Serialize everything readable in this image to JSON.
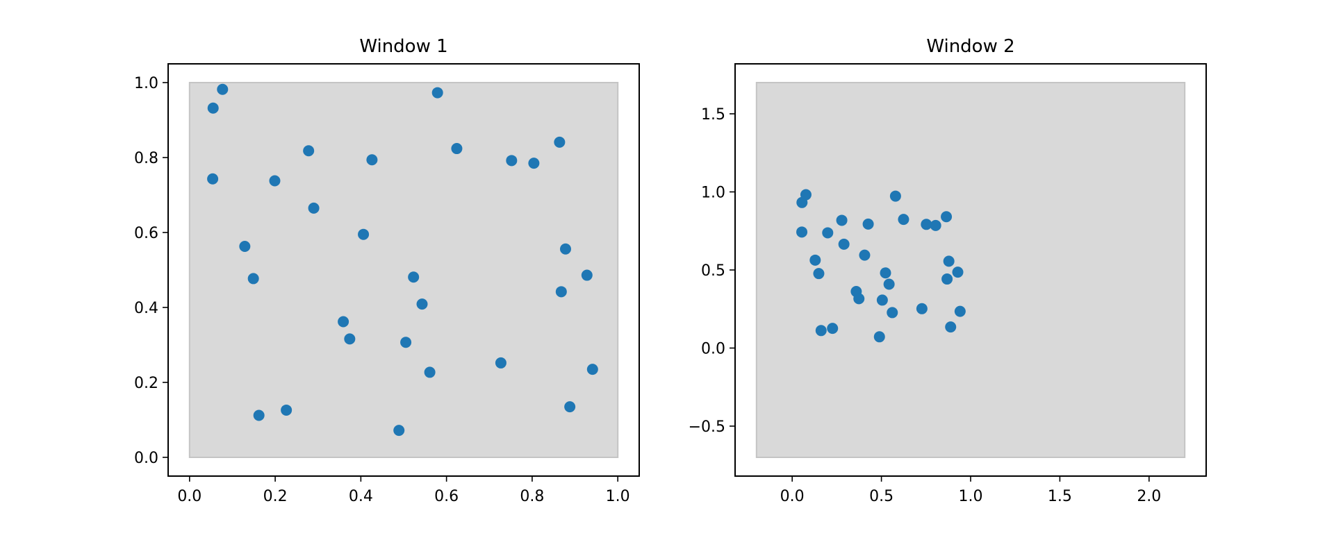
{
  "chart_data": [
    {
      "type": "scatter",
      "title": "Window 1",
      "xlim": [
        -0.05,
        1.05
      ],
      "ylim": [
        -0.05,
        1.05
      ],
      "xticks": [
        0.0,
        0.2,
        0.4,
        0.6,
        0.8,
        1.0
      ],
      "xtick_labels": [
        "0.0",
        "0.2",
        "0.4",
        "0.6",
        "0.8",
        "1.0"
      ],
      "yticks": [
        0.0,
        0.2,
        0.4,
        0.6,
        0.8,
        1.0
      ],
      "ytick_labels": [
        "0.0",
        "0.2",
        "0.4",
        "0.6",
        "0.8",
        "1.0"
      ],
      "grid": false,
      "background_rect": {
        "x": [
          0,
          1
        ],
        "y": [
          0,
          1
        ],
        "color": "#d9d9d9",
        "edge": "#c4c4c4"
      },
      "marker_color": "#1f77b4",
      "points": {
        "x": [
          0.055,
          0.077,
          0.054,
          0.199,
          0.278,
          0.29,
          0.426,
          0.406,
          0.579,
          0.624,
          0.752,
          0.804,
          0.864,
          0.129,
          0.149,
          0.878,
          0.523,
          0.543,
          0.868,
          0.928,
          0.359,
          0.374,
          0.505,
          0.561,
          0.727,
          0.941,
          0.162,
          0.226,
          0.489,
          0.888
        ],
        "y": [
          0.932,
          0.982,
          0.743,
          0.738,
          0.818,
          0.665,
          0.794,
          0.595,
          0.973,
          0.824,
          0.792,
          0.785,
          0.841,
          0.563,
          0.477,
          0.556,
          0.481,
          0.409,
          0.442,
          0.486,
          0.362,
          0.316,
          0.307,
          0.227,
          0.252,
          0.235,
          0.112,
          0.126,
          0.072,
          0.135
        ]
      }
    },
    {
      "type": "scatter",
      "title": "Window 2",
      "xlim": [
        -0.32,
        2.32
      ],
      "ylim": [
        -0.82,
        1.82
      ],
      "xticks": [
        0.0,
        0.5,
        1.0,
        1.5,
        2.0
      ],
      "xtick_labels": [
        "0.0",
        "0.5",
        "1.0",
        "1.5",
        "2.0"
      ],
      "yticks": [
        -0.5,
        0.0,
        0.5,
        1.0,
        1.5
      ],
      "ytick_labels": [
        "−0.5",
        "0.0",
        "0.5",
        "1.0",
        "1.5"
      ],
      "grid": false,
      "background_rect": {
        "x": [
          -0.2,
          2.2
        ],
        "y": [
          -0.7,
          1.7
        ],
        "color": "#d9d9d9",
        "edge": "#c4c4c4"
      },
      "marker_color": "#1f77b4",
      "points": {
        "x": [
          0.055,
          0.077,
          0.054,
          0.199,
          0.278,
          0.29,
          0.426,
          0.406,
          0.579,
          0.624,
          0.752,
          0.804,
          0.864,
          0.129,
          0.149,
          0.878,
          0.523,
          0.543,
          0.868,
          0.928,
          0.359,
          0.374,
          0.505,
          0.561,
          0.727,
          0.941,
          0.162,
          0.226,
          0.489,
          0.888
        ],
        "y": [
          0.932,
          0.982,
          0.743,
          0.738,
          0.818,
          0.665,
          0.794,
          0.595,
          0.973,
          0.824,
          0.792,
          0.785,
          0.841,
          0.563,
          0.477,
          0.556,
          0.481,
          0.409,
          0.442,
          0.486,
          0.362,
          0.316,
          0.307,
          0.227,
          0.252,
          0.235,
          0.112,
          0.126,
          0.072,
          0.135
        ]
      }
    }
  ]
}
